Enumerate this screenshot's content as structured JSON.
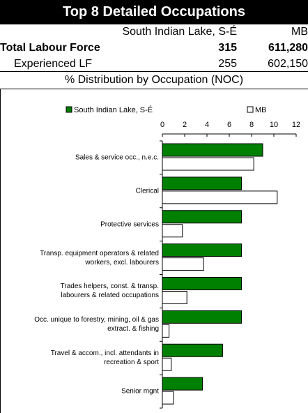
{
  "header": {
    "title": "Top 8 Detailed Occupations",
    "place": "South Indian Lake, S-É",
    "region": "MB"
  },
  "table": {
    "rows": [
      [
        "Total Labour Force",
        "315",
        "611,280"
      ],
      [
        "Experienced LF",
        "255",
        "602,150"
      ]
    ]
  },
  "section_title": "% Distribution by Occupation (NOC)",
  "chart_data": {
    "type": "bar",
    "orientation": "horizontal",
    "categories": [
      "Sales & service occ., n.e.c.",
      "Clerical",
      "Protective services",
      "Transp. equipment operators & related\nworkers, excl. labourers",
      "Trades helpers, const. & transp.\nlabourers & related occupations",
      "Occ. unique to forestry, mining, oil & gas\nextract. & fishing",
      "Travel & accom., incl. attendants in\nrecreation & sport",
      "Senior mgnt"
    ],
    "series": [
      {
        "name": "South Indian Lake, S-É",
        "color": "#008000",
        "values": [
          9.0,
          7.1,
          7.1,
          7.1,
          7.1,
          7.1,
          5.4,
          3.6
        ]
      },
      {
        "name": "MB",
        "color": "#ffffff",
        "values": [
          8.2,
          10.3,
          1.8,
          3.7,
          2.2,
          0.6,
          0.8,
          1.0
        ]
      }
    ],
    "xlim": [
      0,
      12
    ],
    "xticks": [
      0,
      2,
      4,
      6,
      8,
      10,
      12
    ],
    "legend": "top"
  }
}
